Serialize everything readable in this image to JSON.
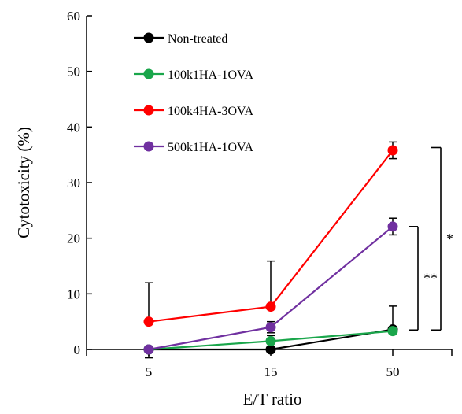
{
  "chart_data": {
    "type": "line",
    "categories": [
      "5",
      "15",
      "50"
    ],
    "xlabel": "E/T ratio",
    "ylabel": "Cytotoxicity (%)",
    "ylim": [
      0,
      60
    ],
    "yticks": [
      0,
      10,
      20,
      30,
      40,
      50,
      60
    ],
    "grid": false,
    "legend_position": "top-left",
    "series": [
      {
        "name": "Non-treated",
        "color": "#000000",
        "values": [
          0,
          0,
          3.6
        ],
        "error": [
          0,
          0,
          4.2
        ],
        "error_side": [
          "none",
          "none",
          "up"
        ]
      },
      {
        "name": "100k1HA-1OVA",
        "color": "#1aa64b",
        "values": [
          0,
          1.5,
          3.3
        ],
        "error": [
          0,
          1.0,
          0.8
        ],
        "error_side": [
          "none",
          "up",
          "up"
        ]
      },
      {
        "name": "100k4HA-3OVA",
        "color": "#ff0000",
        "values": [
          5.0,
          7.7,
          35.8
        ],
        "error": [
          7.0,
          8.2,
          1.5
        ],
        "error_side": [
          "up",
          "up",
          "both"
        ]
      },
      {
        "name": "500k1HA-1OVA",
        "color": "#7030a0",
        "values": [
          0,
          4.0,
          22.1
        ],
        "error": [
          1.5,
          1.0,
          1.5
        ],
        "error_side": [
          "down",
          "both",
          "both"
        ]
      }
    ],
    "annotations": [
      {
        "label": "**",
        "x_index": 2,
        "y_from": 3.5,
        "y_to": 22.1
      },
      {
        "label": "*",
        "x_index": 2,
        "y_from": 3.5,
        "y_to": 36.3
      }
    ]
  }
}
